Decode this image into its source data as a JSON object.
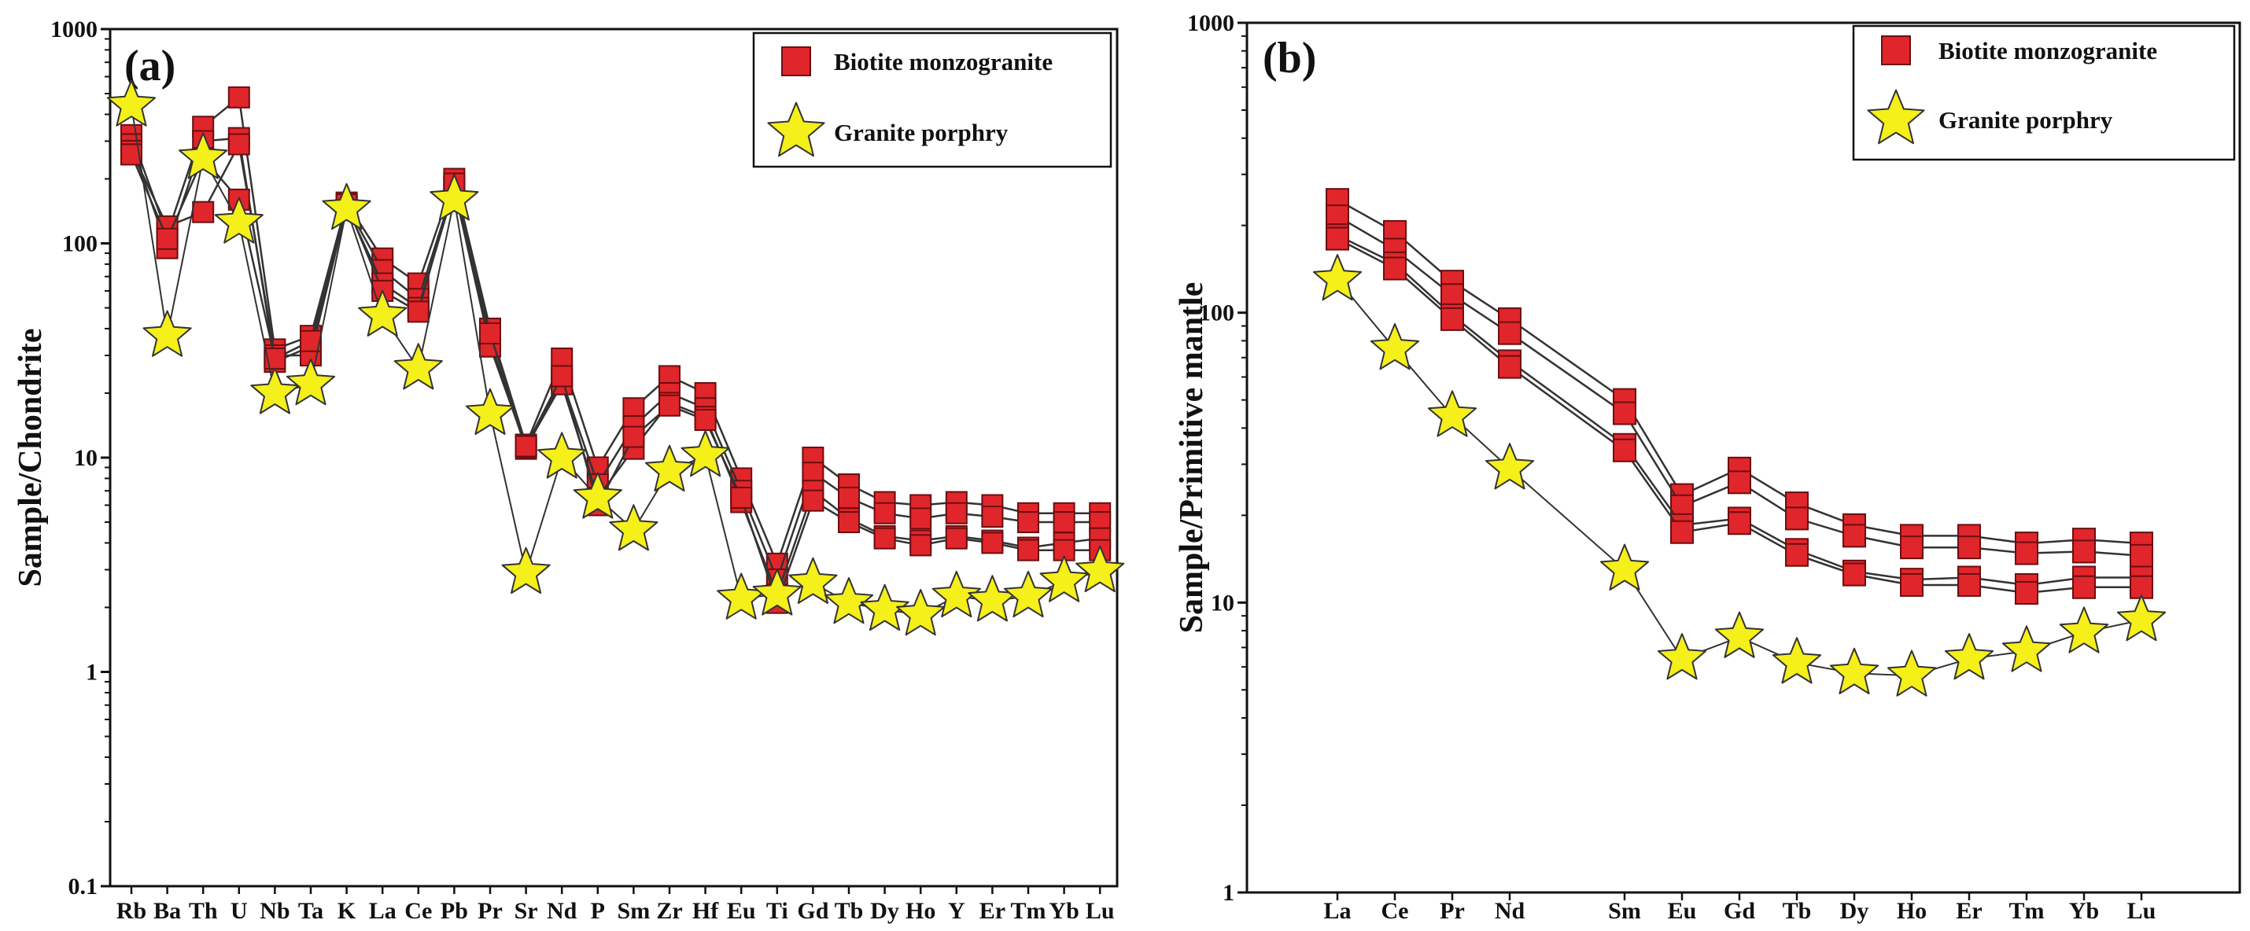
{
  "colors": {
    "square_fill": "#e0262b",
    "square_edge": "#6b0e10",
    "star_fill": "#f5ef1a",
    "star_edge": "#333333",
    "line": "#333333",
    "axis": "#111111"
  },
  "chart_data": [
    {
      "id": "a",
      "panel_label": "(a)",
      "type": "line",
      "yscale": "log",
      "ylim": [
        0.1,
        1000
      ],
      "ylabel": "Sample/Chondrite",
      "xlabel": "",
      "ytick_labels": [
        "0.1",
        "1",
        "10",
        "100",
        "1000"
      ],
      "categories": [
        "Rb",
        "Ba",
        "Th",
        "U",
        "Nb",
        "Ta",
        "K",
        "La",
        "Ce",
        "Pb",
        "Pr",
        "Sr",
        "Nd",
        "P",
        "Sm",
        "Zr",
        "Hf",
        "Eu",
        "Ti",
        "Gd",
        "Tb",
        "Dy",
        "Ho",
        "Y",
        "Er",
        "Tm",
        "Yb",
        "Lu"
      ],
      "legend": {
        "position": "top-right",
        "entries": [
          "Biotite monzogranite",
          "Granite porphry"
        ]
      },
      "series": [
        {
          "name": "Biotite monzogranite",
          "marker": "square",
          "values": [
            320,
            110,
            350,
            480,
            32,
            37,
            155,
            85,
            65,
            200,
            40,
            11.5,
            29,
            9,
            17,
            24,
            20,
            8,
            3.2,
            10,
            7.5,
            6.2,
            6,
            6.2,
            6,
            5.5,
            5.5,
            5.5
          ]
        },
        {
          "name": "Biotite monzogranite",
          "marker": "square",
          "values": [
            290,
            95,
            300,
            310,
            28,
            33,
            150,
            75,
            55,
            185,
            35,
            11,
            23,
            7.5,
            14,
            20,
            17,
            7,
            2.7,
            8.5,
            6.5,
            5.5,
            5.2,
            5.5,
            5.3,
            5,
            5,
            5
          ]
        },
        {
          "name": "Biotite monzogranite",
          "marker": "square",
          "values": [
            270,
            120,
            140,
            290,
            30,
            30,
            148,
            65,
            50,
            180,
            33,
            11.2,
            22,
            6.5,
            11,
            18,
            15.5,
            6.2,
            2.3,
            7,
            5.2,
            4.3,
            4.1,
            4.3,
            4.1,
            3.8,
            4,
            4.2
          ]
        },
        {
          "name": "Biotite monzogranite",
          "marker": "square",
          "values": [
            260,
            105,
            250,
            160,
            29,
            35,
            152,
            60,
            48,
            190,
            38,
            11.3,
            24,
            6,
            12.5,
            17.5,
            15,
            6.5,
            2.1,
            6.3,
            5,
            4.2,
            3.9,
            4.2,
            4,
            3.7,
            3.7,
            3.7
          ]
        },
        {
          "name": "Granite porphry",
          "marker": "star",
          "values": [
            440,
            37,
            250,
            125,
            20,
            22,
            145,
            46,
            26,
            160,
            16,
            2.9,
            10,
            6.5,
            4.6,
            8.7,
            10.2,
            2.2,
            2.3,
            2.6,
            2.1,
            1.95,
            1.85,
            2.25,
            2.15,
            2.25,
            2.65,
            2.95
          ]
        }
      ]
    },
    {
      "id": "b",
      "panel_label": "(b)",
      "type": "line",
      "yscale": "log",
      "ylim": [
        1,
        1000
      ],
      "ylabel": "Sample/Primitive mantle",
      "xlabel": "",
      "ytick_labels": [
        "1",
        "10",
        "100",
        "1000"
      ],
      "categories": [
        "La",
        "Ce",
        "Pr",
        "Nd",
        "Sm",
        "Eu",
        "Gd",
        "Tb",
        "Dy",
        "Ho",
        "Er",
        "Tm",
        "Yb",
        "Lu"
      ],
      "category_positions": [
        0,
        1,
        2,
        3,
        5,
        6,
        7,
        8,
        9,
        10,
        11,
        12,
        13,
        14
      ],
      "legend": {
        "position": "top-right",
        "entries": [
          "Biotite monzogranite",
          "Granite porphry"
        ]
      },
      "series": [
        {
          "name": "Biotite monzogranite",
          "marker": "square",
          "values": [
            245,
            190,
            128,
            95,
            50,
            23.5,
            29,
            22,
            18.5,
            17,
            17,
            16,
            16.5,
            16
          ]
        },
        {
          "name": "Biotite monzogranite",
          "marker": "square",
          "values": [
            215,
            165,
            115,
            85,
            45,
            21.5,
            26,
            19.5,
            17,
            15.5,
            15.5,
            14.8,
            15,
            14.5
          ]
        },
        {
          "name": "Biotite monzogranite",
          "marker": "square",
          "values": [
            185,
            148,
            98,
            68,
            35,
            18.5,
            19.5,
            15.2,
            12.8,
            12,
            12.2,
            11.5,
            12.2,
            12.2
          ]
        },
        {
          "name": "Biotite monzogranite",
          "marker": "square",
          "values": [
            180,
            142,
            95,
            65,
            33.5,
            17.5,
            18.8,
            14.6,
            12.5,
            11.5,
            11.5,
            10.8,
            11.3,
            11.3
          ]
        },
        {
          "name": "Granite porphry",
          "marker": "star",
          "values": [
            130,
            75,
            44,
            29,
            13,
            6.4,
            7.6,
            6.2,
            5.7,
            5.6,
            6.4,
            6.8,
            7.9,
            8.7
          ]
        }
      ]
    }
  ]
}
